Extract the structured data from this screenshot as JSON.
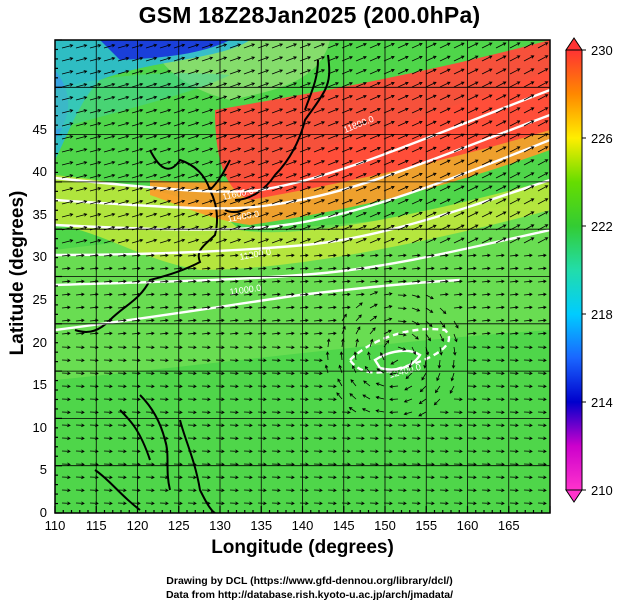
{
  "title": "GSM 18Z28Jan2025 (200.0hPa)",
  "x_axis": {
    "label": "Longitude (degrees)",
    "range": [
      110,
      170
    ],
    "ticks": [
      "110",
      "115",
      "120",
      "125",
      "130",
      "135",
      "140",
      "145",
      "150",
      "155",
      "160",
      "165"
    ]
  },
  "y_axis": {
    "label": "Latitude  (degrees)",
    "range": [
      0,
      50
    ],
    "ticks": [
      "0",
      "5",
      "10",
      "15",
      "20",
      "25",
      "30",
      "35",
      "40",
      "45"
    ]
  },
  "colorbar": {
    "min": 210,
    "max": 230,
    "ticks": [
      "210",
      "214",
      "218",
      "222",
      "226",
      "230"
    ]
  },
  "contour_labels": [
    "11800.0",
    "11600.0",
    "11400.0",
    "11200.0",
    "11000.0",
    "12400.0"
  ],
  "credits": {
    "line1": "Drawing by DCL (https://www.gfd-dennou.org/library/dcl/)",
    "line2": "Data from http://database.rish.kyoto-u.ac.jp/arch/jmadata/"
  }
}
